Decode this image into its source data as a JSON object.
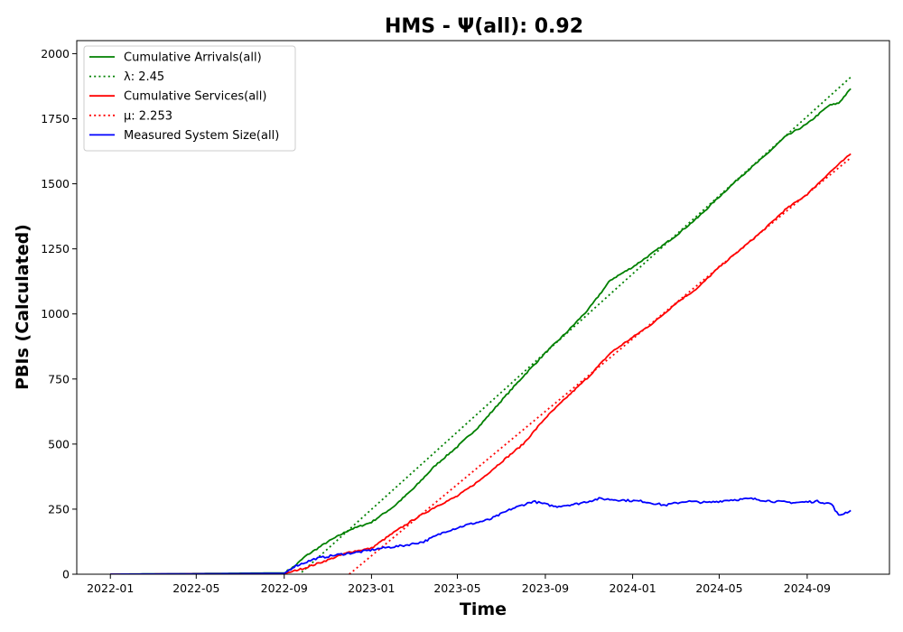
{
  "chart_data": {
    "type": "line",
    "title": "HMS -  Ψ(all): 0.92",
    "xlabel": "Time",
    "ylabel": "PBIs (Calculated)",
    "xlim": [
      "2021-11-15",
      "2024-12-25"
    ],
    "ylim": [
      0,
      2050
    ],
    "x_ticks": [
      "2022-01",
      "2022-05",
      "2022-09",
      "2023-01",
      "2023-05",
      "2023-09",
      "2024-01",
      "2024-05",
      "2024-09"
    ],
    "y_ticks": [
      0,
      250,
      500,
      750,
      1000,
      1250,
      1500,
      1750,
      2000
    ],
    "grid": false,
    "legend_position": "top-left",
    "series": [
      {
        "name": "Cumulative Arrivals(all)",
        "legend_label": "Cumulative Arrivals(all)",
        "style": "solid",
        "color": "#008000",
        "x": [
          "2022-01-01",
          "2022-06-01",
          "2022-09-01",
          "2022-09-15",
          "2022-10-01",
          "2022-11-01",
          "2022-12-01",
          "2023-01-01",
          "2023-02-01",
          "2023-03-01",
          "2023-04-01",
          "2023-05-01",
          "2023-06-01",
          "2023-07-01",
          "2023-08-01",
          "2023-09-01",
          "2023-10-01",
          "2023-11-01",
          "2023-12-01",
          "2024-01-01",
          "2024-02-01",
          "2024-03-01",
          "2024-04-01",
          "2024-05-01",
          "2024-06-01",
          "2024-07-01",
          "2024-08-01",
          "2024-09-01",
          "2024-10-01",
          "2024-10-15",
          "2024-11-01"
        ],
        "y": [
          0,
          3,
          5,
          30,
          70,
          125,
          170,
          200,
          260,
          330,
          420,
          490,
          570,
          665,
          760,
          850,
          930,
          1020,
          1130,
          1180,
          1240,
          1300,
          1370,
          1450,
          1530,
          1600,
          1680,
          1730,
          1800,
          1810,
          1865
        ]
      },
      {
        "name": "lambda",
        "legend_label": "λ: 2.45",
        "style": "dotted",
        "color": "#008000",
        "x": [
          "2022-09-01",
          "2024-11-01"
        ],
        "y": [
          -53,
          1910
        ]
      },
      {
        "name": "Cumulative Services(all)",
        "legend_label": "Cumulative Services(all)",
        "style": "solid",
        "color": "#ff0000",
        "x": [
          "2022-01-01",
          "2022-09-01",
          "2022-10-01",
          "2022-11-01",
          "2022-12-01",
          "2023-01-01",
          "2023-02-01",
          "2023-03-01",
          "2023-04-01",
          "2023-05-01",
          "2023-06-01",
          "2023-07-01",
          "2023-08-01",
          "2023-09-01",
          "2023-10-01",
          "2023-11-01",
          "2023-12-01",
          "2024-01-01",
          "2024-02-01",
          "2024-03-01",
          "2024-04-01",
          "2024-05-01",
          "2024-06-01",
          "2024-07-01",
          "2024-08-01",
          "2024-09-01",
          "2024-10-01",
          "2024-11-01"
        ],
        "y": [
          0,
          2,
          25,
          55,
          85,
          100,
          160,
          210,
          260,
          300,
          360,
          430,
          500,
          600,
          680,
          760,
          850,
          910,
          970,
          1040,
          1100,
          1180,
          1250,
          1320,
          1400,
          1460,
          1540,
          1615
        ]
      },
      {
        "name": "mu",
        "legend_label": "μ: 2.253",
        "style": "dotted",
        "color": "#ff0000",
        "x": [
          "2022-12-01",
          "2024-11-01"
        ],
        "y": [
          0,
          1600
        ]
      },
      {
        "name": "Measured System Size(all)",
        "legend_label": "Measured System Size(all)",
        "style": "solid",
        "color": "#0000ff",
        "x": [
          "2022-01-01",
          "2022-09-01",
          "2022-09-15",
          "2022-10-15",
          "2022-11-15",
          "2022-12-15",
          "2023-01-15",
          "2023-02-15",
          "2023-03-15",
          "2023-04-15",
          "2023-05-15",
          "2023-06-15",
          "2023-07-15",
          "2023-08-15",
          "2023-09-15",
          "2023-10-15",
          "2023-11-15",
          "2023-12-15",
          "2024-01-15",
          "2024-02-15",
          "2024-03-15",
          "2024-04-15",
          "2024-05-15",
          "2024-06-15",
          "2024-07-15",
          "2024-08-15",
          "2024-09-15",
          "2024-10-05",
          "2024-10-15",
          "2024-11-01"
        ],
        "y": [
          0,
          3,
          30,
          60,
          75,
          85,
          100,
          110,
          125,
          165,
          190,
          210,
          250,
          280,
          260,
          270,
          290,
          285,
          280,
          265,
          280,
          275,
          285,
          290,
          280,
          275,
          280,
          270,
          225,
          245
        ]
      }
    ]
  }
}
